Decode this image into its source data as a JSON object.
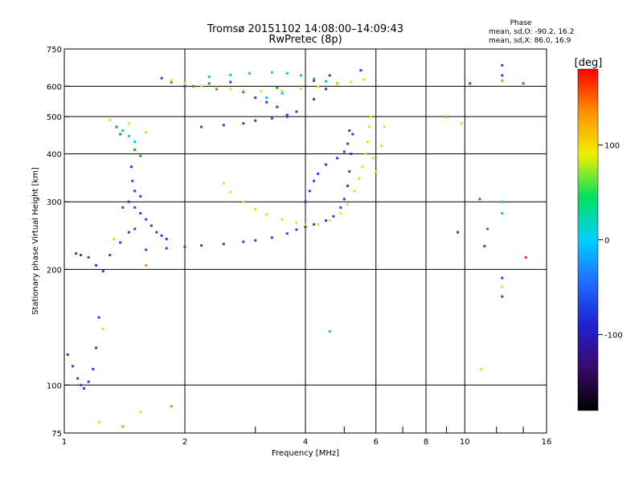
{
  "chart_data": {
    "type": "scatter",
    "title": "Tromsø 20151102 14:08:00–14:09:43",
    "subtitle": "RwPretec (8p)",
    "xlabel": "Frequency [MHz]",
    "ylabel": "Stationary phase Virtual Height [km]",
    "x_scale": "log",
    "y_scale": "log",
    "xlim": [
      1,
      16
    ],
    "ylim": [
      75,
      750
    ],
    "x_ticks": [
      1,
      2,
      4,
      6,
      8,
      10,
      16
    ],
    "x_tick_labels": [
      "1",
      "2",
      "4",
      "6",
      "8",
      "10",
      "16"
    ],
    "y_ticks": [
      75,
      100,
      200,
      300,
      400,
      500,
      600,
      750
    ],
    "y_tick_labels": [
      "75",
      "100",
      "200",
      "300",
      "400",
      "500",
      "600",
      "750"
    ],
    "grid": true,
    "colorbar": {
      "label": "[deg]",
      "range": [
        -180,
        180
      ],
      "ticks": [
        -100,
        0,
        100
      ],
      "tick_labels": [
        "-100",
        "0",
        "100"
      ],
      "colors": [
        "#000000",
        "#3a0a6a",
        "#2020d0",
        "#1e6cff",
        "#00d0ff",
        "#00e060",
        "#f0f000",
        "#ff9000",
        "#ff0000"
      ]
    },
    "phase_stats": {
      "title": "Phase",
      "line_o": "mean, sd,O: -90.2, 16.2",
      "line_x": "mean, sd,X: 86.0, 16.9"
    },
    "series": [
      {
        "color": "#3a3ae0",
        "points": [
          [
            1.02,
            120
          ],
          [
            1.05,
            112
          ],
          [
            1.08,
            104
          ],
          [
            1.1,
            100
          ],
          [
            1.12,
            98
          ],
          [
            1.15,
            102
          ],
          [
            1.18,
            110
          ],
          [
            1.2,
            125
          ],
          [
            1.22,
            150
          ],
          [
            1.07,
            220
          ],
          [
            1.1,
            218
          ],
          [
            1.15,
            215
          ],
          [
            1.2,
            205
          ],
          [
            1.25,
            198
          ],
          [
            1.3,
            218
          ],
          [
            1.38,
            235
          ],
          [
            1.45,
            250
          ],
          [
            1.5,
            255
          ],
          [
            1.4,
            290
          ],
          [
            1.45,
            300
          ],
          [
            1.5,
            290
          ],
          [
            1.55,
            280
          ],
          [
            1.6,
            270
          ],
          [
            1.65,
            260
          ],
          [
            1.7,
            250
          ],
          [
            1.75,
            245
          ],
          [
            1.8,
            240
          ],
          [
            1.47,
            370
          ],
          [
            1.48,
            340
          ],
          [
            1.5,
            320
          ],
          [
            1.55,
            310
          ],
          [
            1.6,
            225
          ],
          [
            1.8,
            227
          ],
          [
            2.0,
            229
          ],
          [
            2.2,
            231
          ],
          [
            2.5,
            233
          ],
          [
            2.8,
            236
          ],
          [
            3.0,
            238
          ],
          [
            3.3,
            242
          ],
          [
            3.6,
            248
          ],
          [
            3.8,
            254
          ],
          [
            4.0,
            258
          ],
          [
            4.2,
            262
          ],
          [
            4.5,
            268
          ],
          [
            4.7,
            275
          ],
          [
            4.9,
            290
          ],
          [
            5.0,
            305
          ],
          [
            5.1,
            330
          ],
          [
            5.15,
            360
          ],
          [
            5.2,
            400
          ],
          [
            5.25,
            450
          ],
          [
            4.0,
            300
          ],
          [
            4.1,
            320
          ],
          [
            4.2,
            340
          ],
          [
            4.3,
            355
          ],
          [
            4.5,
            375
          ],
          [
            4.8,
            390
          ],
          [
            5.0,
            405
          ],
          [
            5.1,
            425
          ],
          [
            5.15,
            460
          ],
          [
            2.2,
            470
          ],
          [
            2.5,
            475
          ],
          [
            2.8,
            480
          ],
          [
            3.0,
            488
          ],
          [
            3.3,
            495
          ],
          [
            3.6,
            500
          ],
          [
            1.75,
            630
          ],
          [
            1.85,
            615
          ],
          [
            2.0,
            600
          ],
          [
            2.4,
            590
          ],
          [
            2.6,
            615
          ],
          [
            2.8,
            580
          ],
          [
            3.0,
            560
          ],
          [
            3.2,
            545
          ],
          [
            3.4,
            530
          ],
          [
            3.6,
            505
          ],
          [
            3.8,
            515
          ],
          [
            4.2,
            555
          ],
          [
            4.5,
            590
          ],
          [
            4.2,
            620
          ],
          [
            4.6,
            640
          ],
          [
            5.5,
            660
          ],
          [
            9.6,
            250
          ],
          [
            10.3,
            610
          ],
          [
            12.4,
            680
          ],
          [
            12.4,
            640
          ],
          [
            12.4,
            190
          ],
          [
            12.4,
            170
          ],
          [
            11.2,
            230
          ]
        ]
      },
      {
        "color": "#00c8f0",
        "points": [
          [
            2.3,
            635
          ],
          [
            2.6,
            642
          ],
          [
            2.9,
            648
          ],
          [
            3.3,
            652
          ],
          [
            3.6,
            648
          ],
          [
            3.9,
            640
          ],
          [
            4.2,
            628
          ],
          [
            4.5,
            618
          ],
          [
            4.8,
            610
          ],
          [
            1.4,
            460
          ],
          [
            1.45,
            445
          ],
          [
            1.5,
            430
          ],
          [
            3.2,
            560
          ],
          [
            3.5,
            575
          ],
          [
            12.4,
            300
          ],
          [
            12.4,
            280
          ],
          [
            4.6,
            138
          ]
        ]
      },
      {
        "color": "#1aa028",
        "points": [
          [
            1.35,
            470
          ],
          [
            1.38,
            450
          ],
          [
            1.5,
            410
          ],
          [
            1.55,
            395
          ],
          [
            2.1,
            600
          ],
          [
            2.3,
            610
          ],
          [
            3.4,
            595
          ],
          [
            10.9,
            305
          ],
          [
            14.0,
            610
          ],
          [
            11.4,
            255
          ]
        ]
      },
      {
        "color": "#e0e020",
        "points": [
          [
            2.5,
            335
          ],
          [
            2.6,
            318
          ],
          [
            2.8,
            300
          ],
          [
            3.0,
            287
          ],
          [
            3.2,
            278
          ],
          [
            3.5,
            270
          ],
          [
            3.8,
            265
          ],
          [
            4.0,
            262
          ],
          [
            4.3,
            262
          ],
          [
            4.6,
            268
          ],
          [
            4.9,
            280
          ],
          [
            5.1,
            295
          ],
          [
            5.3,
            320
          ],
          [
            5.45,
            345
          ],
          [
            5.55,
            370
          ],
          [
            5.65,
            400
          ],
          [
            5.72,
            430
          ],
          [
            5.78,
            470
          ],
          [
            5.82,
            500
          ],
          [
            5.9,
            390
          ],
          [
            6.0,
            360
          ],
          [
            6.2,
            420
          ],
          [
            6.3,
            470
          ],
          [
            1.85,
            620
          ],
          [
            2.0,
            610
          ],
          [
            2.2,
            600
          ],
          [
            2.4,
            595
          ],
          [
            2.6,
            590
          ],
          [
            2.8,
            585
          ],
          [
            3.1,
            582
          ],
          [
            3.5,
            584
          ],
          [
            3.9,
            590
          ],
          [
            4.3,
            598
          ],
          [
            4.8,
            608
          ],
          [
            5.2,
            615
          ],
          [
            5.6,
            625
          ],
          [
            1.3,
            490
          ],
          [
            1.45,
            480
          ],
          [
            1.6,
            455
          ],
          [
            9.8,
            480
          ],
          [
            11.0,
            110
          ],
          [
            12.4,
            180
          ],
          [
            1.25,
            140
          ],
          [
            1.33,
            240
          ],
          [
            1.22,
            80
          ],
          [
            1.55,
            85
          ]
        ]
      },
      {
        "color": "#ff9020",
        "points": [
          [
            1.6,
            205
          ],
          [
            1.85,
            88
          ],
          [
            1.4,
            78
          ],
          [
            9.0,
            500
          ],
          [
            12.4,
            620
          ]
        ]
      },
      {
        "color": "#ff2020",
        "points": [
          [
            14.2,
            215
          ]
        ]
      }
    ]
  }
}
